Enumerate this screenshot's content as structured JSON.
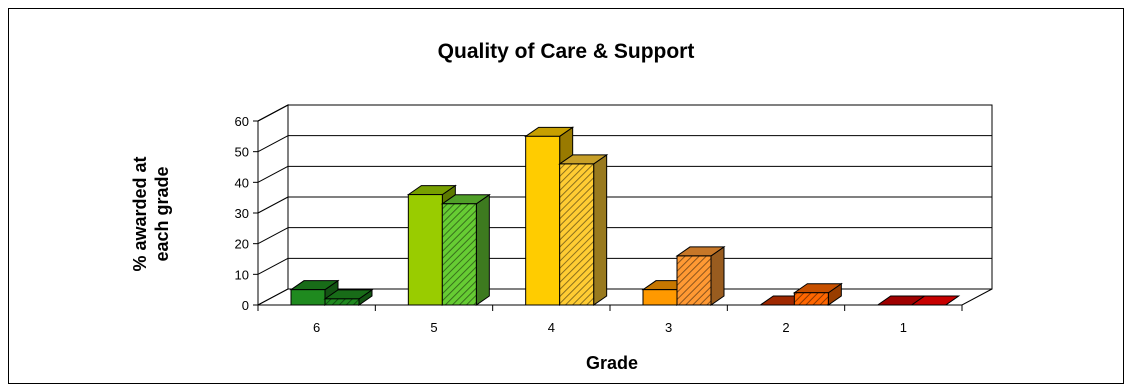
{
  "chart_data": {
    "type": "bar",
    "title": "Quality of Care & Support",
    "xlabel": "Grade",
    "ylabel_line1": "% awarded at",
    "ylabel_line2": "each grade",
    "categories": [
      "6",
      "5",
      "4",
      "3",
      "2",
      "1"
    ],
    "yticks": [
      "0",
      "10",
      "20",
      "30",
      "40",
      "50",
      "60"
    ],
    "ylim": [
      0,
      60
    ],
    "grid": true,
    "legend": "none",
    "series": [
      {
        "values": [
          5,
          36,
          55,
          5,
          0,
          0
        ],
        "colors": [
          "#1f8a1f",
          "#99cc00",
          "#ffcc00",
          "#ff9900",
          "#cc3300",
          "#cc0000"
        ],
        "pattern": "solid"
      },
      {
        "values": [
          2,
          33,
          46,
          16,
          4,
          0
        ],
        "colors": [
          "#1f8a1f",
          "#66cc33",
          "#ffcc33",
          "#ff9933",
          "#ff6600",
          "#ff0000"
        ],
        "pattern": "hatched"
      }
    ]
  }
}
